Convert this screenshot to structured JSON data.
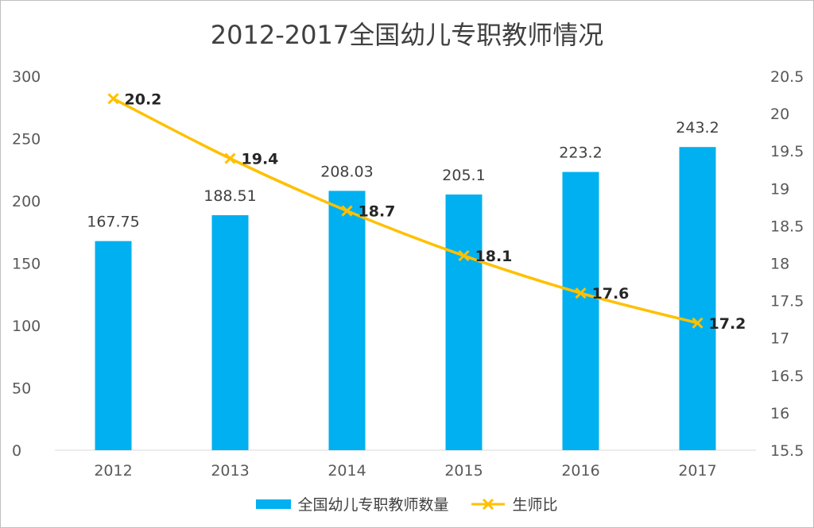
{
  "colors": {
    "bar": "#00B0F0",
    "line": "#FFC000",
    "axis": "#d9d9d9"
  },
  "chart_data": {
    "type": "bar",
    "title": "2012-2017全国幼儿专职教师情况",
    "categories": [
      "2012",
      "2013",
      "2014",
      "2015",
      "2016",
      "2017"
    ],
    "series": [
      {
        "name": "全国幼儿专职教师数量",
        "type": "bar",
        "axis": "left",
        "values": [
          167.75,
          188.51,
          208.03,
          205.1,
          223.2,
          243.2
        ],
        "labels": [
          "167.75",
          "188.51",
          "208.03",
          "205.1",
          "223.2",
          "243.2"
        ]
      },
      {
        "name": "生师比",
        "type": "line",
        "axis": "right",
        "marker": "x",
        "values": [
          20.2,
          19.4,
          18.7,
          18.1,
          17.6,
          17.2
        ],
        "labels": [
          "20.2",
          "19.4",
          "18.7",
          "18.1",
          "17.6",
          "17.2"
        ]
      }
    ],
    "y_left": {
      "ylim": [
        0,
        300
      ],
      "ticks": [
        "0",
        "50",
        "100",
        "150",
        "200",
        "250",
        "300"
      ]
    },
    "y_right": {
      "ylim": [
        15.5,
        20.5
      ],
      "ticks": [
        "15.5",
        "16",
        "16.5",
        "17",
        "17.5",
        "18",
        "18.5",
        "19",
        "19.5",
        "20",
        "20.5"
      ]
    },
    "xlabel": "",
    "ylabel": "",
    "grid": false,
    "legend": "bottom"
  }
}
